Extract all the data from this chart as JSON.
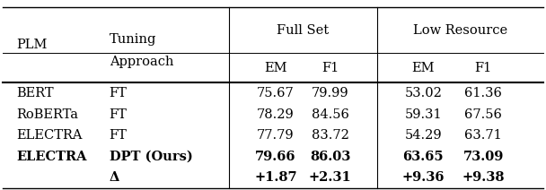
{
  "rows": [
    {
      "plm": "BERT",
      "approach": "FT",
      "fs_em": "75.67",
      "fs_f1": "79.99",
      "lr_em": "53.02",
      "lr_f1": "61.36",
      "bold": false
    },
    {
      "plm": "RoBERTa",
      "approach": "FT",
      "fs_em": "78.29",
      "fs_f1": "84.56",
      "lr_em": "59.31",
      "lr_f1": "67.56",
      "bold": false
    },
    {
      "plm": "ELECTRA",
      "approach": "FT",
      "fs_em": "77.79",
      "fs_f1": "83.72",
      "lr_em": "54.29",
      "lr_f1": "63.71",
      "bold": false
    },
    {
      "plm": "ELECTRA",
      "approach": "DPT (Ours)",
      "fs_em": "79.66",
      "fs_f1": "86.03",
      "lr_em": "63.65",
      "lr_f1": "73.09",
      "bold": true
    },
    {
      "plm": "",
      "approach": "Δ",
      "fs_em": "+1.87",
      "fs_f1": "+2.31",
      "lr_em": "+9.36",
      "lr_f1": "+9.38",
      "bold": true
    }
  ],
  "col_x": {
    "plm": 0.03,
    "approach": 0.2,
    "vline1": 0.42,
    "fs_em": 0.505,
    "fs_f1": 0.605,
    "vline2": 0.69,
    "lr_em": 0.775,
    "lr_f1": 0.885
  },
  "bg_color": "#ffffff",
  "text_color": "#000000",
  "fontsize": 10.5
}
